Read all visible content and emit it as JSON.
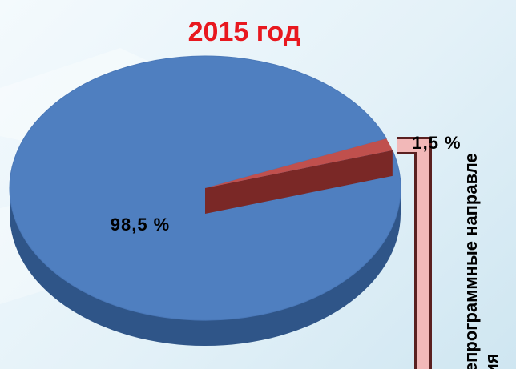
{
  "chart_data": {
    "type": "pie",
    "title": "2015 год",
    "categories": [
      null,
      "Непрограммные направления"
    ],
    "values": [
      98.5,
      1.5
    ],
    "value_labels": [
      "98,5 %",
      "1,5 %"
    ],
    "colors": [
      "#4f7fc0",
      "#c0504d"
    ]
  }
}
